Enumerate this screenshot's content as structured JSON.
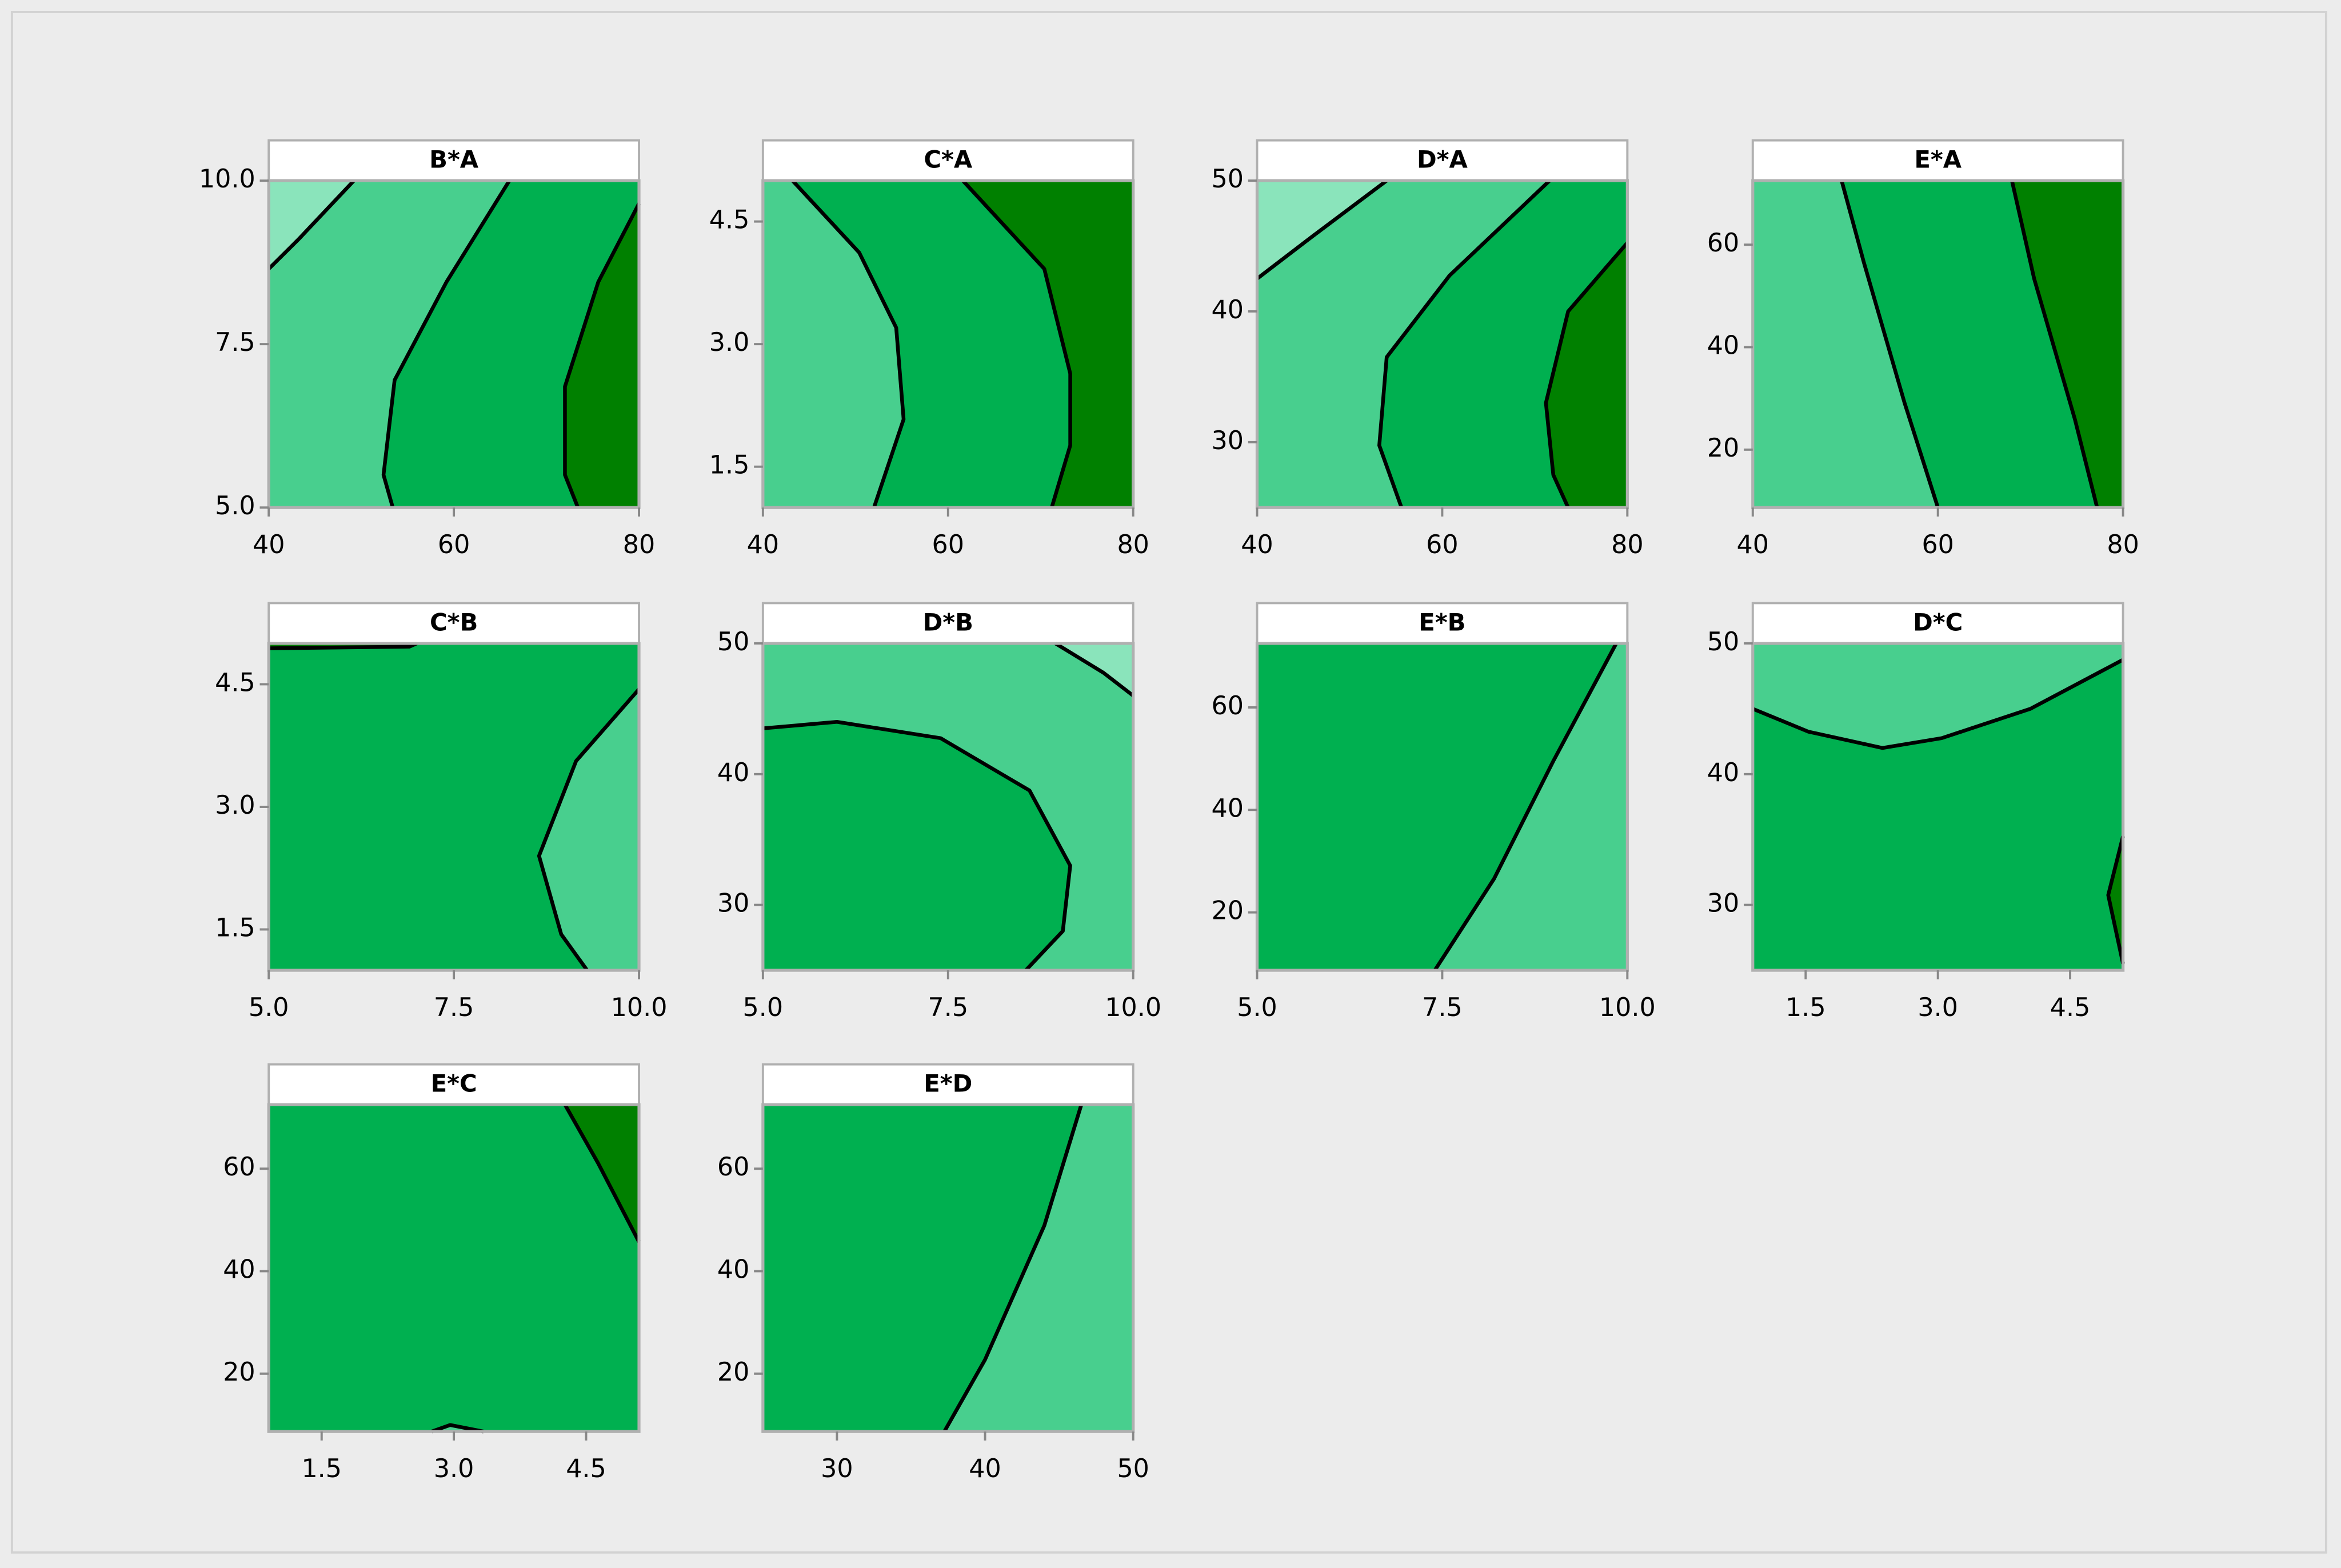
{
  "chart_data": [
    {
      "type": "contour",
      "title": "B*A",
      "colors": [
        "#8ae4bb",
        "#48cf8e",
        "#00b050",
        "#008000"
      ],
      "xlim": [
        40,
        80
      ],
      "xticks": [
        40,
        60,
        80
      ],
      "ylim": [
        5,
        10
      ],
      "yticks": [
        {
          "value": 5,
          "label": "5.0"
        },
        7.5,
        {
          "value": 10,
          "label": "10.0"
        }
      ]
    },
    {
      "type": "contour",
      "title": "C*A",
      "colors": [
        "#8ae4bb",
        "#48cf8e",
        "#00b050",
        "#008000"
      ],
      "xlim": [
        40,
        80
      ],
      "xticks": [
        40,
        60,
        80
      ],
      "ylim": [
        1,
        5
      ],
      "yticks": [
        1.5,
        {
          "value": 3,
          "label": "3.0"
        },
        4.5
      ]
    },
    {
      "type": "contour",
      "title": "D*A",
      "colors": [
        "#8ae4bb",
        "#48cf8e",
        "#00b050",
        "#008000"
      ],
      "xlim": [
        40,
        80
      ],
      "xticks": [
        40,
        60,
        80
      ],
      "ylim": [
        25,
        50
      ],
      "yticks": [
        30,
        40,
        50
      ]
    },
    {
      "type": "contour",
      "title": "E*A",
      "colors": [
        "#8ae4bb",
        "#48cf8e",
        "#00b050",
        "#008000"
      ],
      "xlim": [
        40,
        80
      ],
      "xticks": [
        40,
        60,
        80
      ],
      "ylim": [
        8.7,
        72.5
      ],
      "yticks": [
        20,
        40,
        60
      ]
    },
    {
      "type": "contour",
      "title": "C*B",
      "colors": [
        "#8ae4bb",
        "#48cf8e",
        "#00b050",
        "#008000"
      ],
      "xlim": [
        5,
        10
      ],
      "xticks": [
        {
          "value": 5,
          "label": "5.0"
        },
        7.5,
        {
          "value": 10,
          "label": "10.0"
        }
      ],
      "ylim": [
        1,
        5
      ],
      "yticks": [
        1.5,
        {
          "value": 3,
          "label": "3.0"
        },
        4.5
      ]
    },
    {
      "type": "contour",
      "title": "D*B",
      "colors": [
        "#8ae4bb",
        "#48cf8e",
        "#00b050",
        "#008000"
      ],
      "xlim": [
        5,
        10
      ],
      "xticks": [
        {
          "value": 5,
          "label": "5.0"
        },
        7.5,
        {
          "value": 10,
          "label": "10.0"
        }
      ],
      "ylim": [
        25,
        50
      ],
      "yticks": [
        30,
        40,
        50
      ]
    },
    {
      "type": "contour",
      "title": "E*B",
      "colors": [
        "#8ae4bb",
        "#48cf8e",
        "#00b050",
        "#008000"
      ],
      "xlim": [
        5,
        10
      ],
      "xticks": [
        {
          "value": 5,
          "label": "5.0"
        },
        7.5,
        {
          "value": 10,
          "label": "10.0"
        }
      ],
      "ylim": [
        8.7,
        72.5
      ],
      "yticks": [
        20,
        40,
        60
      ]
    },
    {
      "type": "contour",
      "title": "D*C",
      "colors": [
        "#8ae4bb",
        "#48cf8e",
        "#00b050",
        "#008000"
      ],
      "xlim": [
        0.9,
        5.1
      ],
      "xticks": [
        1.5,
        {
          "value": 3,
          "label": "3.0"
        },
        4.5
      ],
      "ylim": [
        25,
        50
      ],
      "yticks": [
        30,
        40,
        50
      ]
    },
    {
      "type": "contour",
      "title": "E*C",
      "colors": [
        "#8ae4bb",
        "#48cf8e",
        "#00b050",
        "#008000"
      ],
      "xlim": [
        0.9,
        5.1
      ],
      "xticks": [
        1.5,
        {
          "value": 3,
          "label": "3.0"
        },
        4.5
      ],
      "ylim": [
        8.7,
        72.5
      ],
      "yticks": [
        20,
        40,
        60
      ]
    },
    {
      "type": "contour",
      "title": "E*D",
      "colors": [
        "#8ae4bb",
        "#48cf8e",
        "#00b050",
        "#008000"
      ],
      "xlim": [
        25,
        50
      ],
      "xticks": [
        30,
        40,
        50
      ],
      "ylim": [
        8.7,
        72.5
      ],
      "yticks": [
        20,
        40,
        60
      ]
    }
  ]
}
